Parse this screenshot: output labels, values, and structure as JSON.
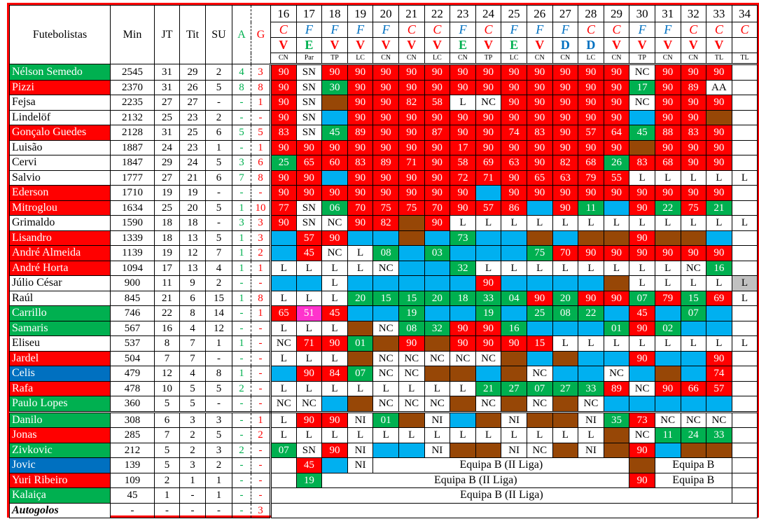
{
  "headers": {
    "name": "Futebolistas",
    "min": "Min",
    "jt": "JT",
    "tit": "Tit",
    "su": "SU",
    "a": "A",
    "g": "G"
  },
  "rounds": [
    "16",
    "17",
    "18",
    "19",
    "20",
    "21",
    "22",
    "23",
    "24",
    "25",
    "26",
    "27",
    "28",
    "29",
    "30",
    "31",
    "32",
    "33",
    "34"
  ],
  "venue": [
    "C",
    "F",
    "F",
    "F",
    "F",
    "C",
    "C",
    "F",
    "C",
    "F",
    "F",
    "F",
    "C",
    "C",
    "F",
    "F",
    "C",
    "C",
    "C"
  ],
  "result": [
    "V",
    "E",
    "V",
    "V",
    "V",
    "V",
    "V",
    "E",
    "V",
    "E",
    "V",
    "D",
    "D",
    "V",
    "V",
    "V",
    "V",
    "V",
    ""
  ],
  "competition": [
    "CN",
    "Par",
    "TP",
    "LC",
    "CN",
    "CN",
    "LC",
    "CN",
    "TP",
    "LC",
    "CN",
    "CN",
    "LC",
    "CN",
    "TP",
    "CN",
    "CN",
    "TL",
    "TL"
  ],
  "colors": {
    "r": "#ff0000",
    "g": "#00b050",
    "b": "#00b0f0",
    "n": "#974706",
    "p": "#ff33cc",
    "x": "#c0c0c0",
    "w": "#ffffff",
    "name_blue": "#0070c0"
  },
  "separator_after": 22,
  "players": [
    {
      "name": "Nélson Semedo",
      "color": "g",
      "min": "2545",
      "jt": "31",
      "tit": "29",
      "su": "2",
      "a": "4",
      "g": "3",
      "fill": "rwrrrrrrrrrrrrwrrrw",
      "cells": [
        "90",
        "SN",
        "90",
        "90",
        "90",
        "90",
        "90",
        "90",
        "90",
        "90",
        "90",
        "90",
        "90",
        "90",
        "NC",
        "90",
        "90",
        "90",
        ""
      ]
    },
    {
      "name": "Pizzi",
      "color": "r",
      "min": "2370",
      "jt": "31",
      "tit": "26",
      "su": "5",
      "a": "8",
      "g": "8",
      "fill": "rwgrrrrrrrrrrrgrrww",
      "cells": [
        "90",
        "SN",
        "30",
        "90",
        "90",
        "90",
        "90",
        "90",
        "90",
        "90",
        "90",
        "90",
        "90",
        "90",
        "17",
        "90",
        "89",
        "AA",
        ""
      ]
    },
    {
      "name": "Fejsa",
      "color": "w",
      "min": "2235",
      "jt": "27",
      "tit": "27",
      "su": "-",
      "a": "-",
      "g": "1",
      "fill": "rwnrrrrwwrrrrrwrrrw",
      "cells": [
        "90",
        "SN",
        "",
        "90",
        "90",
        "82",
        "58",
        "L",
        "NC",
        "90",
        "90",
        "90",
        "90",
        "90",
        "NC",
        "90",
        "90",
        "90",
        ""
      ]
    },
    {
      "name": "Lindelöf",
      "color": "w",
      "min": "2132",
      "jt": "25",
      "tit": "23",
      "su": "2",
      "a": "-",
      "g": "-",
      "fill": "rwbrrrrrrrrrrrbrrnw",
      "cells": [
        "90",
        "SN",
        "",
        "90",
        "90",
        "90",
        "90",
        "90",
        "90",
        "90",
        "90",
        "90",
        "90",
        "90",
        "",
        "90",
        "90",
        "",
        ""
      ]
    },
    {
      "name": "Gonçalo Guedes",
      "color": "r",
      "min": "2128",
      "jt": "31",
      "tit": "25",
      "su": "6",
      "a": "5",
      "g": "5",
      "fill": "rwgrrrrrrrrrrrgrrrw",
      "cells": [
        "83",
        "SN",
        "45",
        "89",
        "90",
        "90",
        "87",
        "90",
        "90",
        "74",
        "83",
        "90",
        "57",
        "64",
        "45",
        "88",
        "83",
        "90",
        ""
      ]
    },
    {
      "name": "Luisão",
      "color": "w",
      "min": "1887",
      "jt": "24",
      "tit": "23",
      "su": "1",
      "a": "-",
      "g": "1",
      "fill": "rrrrrrrrrrrrrrnrrrw",
      "cells": [
        "90",
        "90",
        "90",
        "90",
        "90",
        "90",
        "90",
        "17",
        "90",
        "90",
        "90",
        "90",
        "90",
        "90",
        "",
        "90",
        "90",
        "90",
        ""
      ]
    },
    {
      "name": "Cervi",
      "color": "w",
      "min": "1847",
      "jt": "29",
      "tit": "24",
      "su": "5",
      "a": "3",
      "g": "6",
      "fill": "grrrrrrrrrrrrgrrrrw",
      "cells": [
        "25",
        "65",
        "60",
        "83",
        "89",
        "71",
        "90",
        "58",
        "69",
        "63",
        "90",
        "82",
        "68",
        "26",
        "83",
        "68",
        "90",
        "90",
        ""
      ]
    },
    {
      "name": "Salvio",
      "color": "w",
      "min": "1777",
      "jt": "27",
      "tit": "21",
      "su": "6",
      "a": "7",
      "g": "8",
      "fill": "rrbrrrrrrrrrrrwwwww",
      "cells": [
        "90",
        "90",
        "",
        "90",
        "90",
        "90",
        "90",
        "72",
        "71",
        "90",
        "65",
        "63",
        "79",
        "55",
        "L",
        "L",
        "L",
        "L",
        "L"
      ]
    },
    {
      "name": "Ederson",
      "color": "r",
      "min": "1710",
      "jt": "19",
      "tit": "19",
      "su": "-",
      "a": "-",
      "g": "-",
      "fill": "rrrrrrrrbrrrrrrrrrw",
      "cells": [
        "90",
        "90",
        "90",
        "90",
        "90",
        "90",
        "90",
        "90",
        "",
        "90",
        "90",
        "90",
        "90",
        "90",
        "90",
        "90",
        "90",
        "90",
        ""
      ]
    },
    {
      "name": "Mitroglou",
      "color": "r",
      "min": "1634",
      "jt": "25",
      "tit": "20",
      "su": "5",
      "a": "1",
      "g": "10",
      "fill": "rwgrrrrrrrbrgbrgrgw",
      "cells": [
        "77",
        "SN",
        "06",
        "70",
        "75",
        "75",
        "70",
        "90",
        "57",
        "86",
        "",
        "90",
        "11",
        "",
        "90",
        "22",
        "75",
        "21",
        ""
      ]
    },
    {
      "name": "Grimaldo",
      "color": "w",
      "min": "1590",
      "jt": "18",
      "tit": "18",
      "su": "-",
      "a": "3",
      "g": "3",
      "fill": "rwwrrnrwwwwwwwwwwww",
      "cells": [
        "90",
        "SN",
        "NC",
        "90",
        "82",
        "",
        "90",
        "L",
        "L",
        "L",
        "L",
        "L",
        "L",
        "L",
        "L",
        "L",
        "L",
        "L",
        "L"
      ]
    },
    {
      "name": "Lisandro",
      "color": "r",
      "min": "1339",
      "jt": "18",
      "tit": "13",
      "su": "5",
      "a": "1",
      "g": "3",
      "fill": "brrbbnbgbbnbnnrnnbw",
      "cells": [
        "",
        "57",
        "90",
        "",
        "",
        "",
        "",
        "73",
        "",
        "",
        "",
        "",
        "",
        "",
        "90",
        "",
        "",
        "",
        ""
      ]
    },
    {
      "name": "André Almeida",
      "color": "r",
      "min": "1139",
      "jt": "19",
      "tit": "12",
      "su": "7",
      "a": "1",
      "g": "2",
      "fill": "brwwgbgbbbgrrrrrrrw",
      "cells": [
        "",
        "45",
        "NC",
        "L",
        "08",
        "",
        "03",
        "",
        "",
        "",
        "75",
        "70",
        "90",
        "90",
        "90",
        "90",
        "90",
        "90",
        ""
      ]
    },
    {
      "name": "André Horta",
      "color": "r",
      "min": "1094",
      "jt": "17",
      "tit": "13",
      "su": "4",
      "a": "1",
      "g": "1",
      "fill": "wwwwwbbgwwwwwwwwwgw",
      "cells": [
        "L",
        "L",
        "L",
        "L",
        "NC",
        "",
        "",
        "32",
        "L",
        "L",
        "L",
        "L",
        "L",
        "L",
        "L",
        "L",
        "NC",
        "16",
        ""
      ]
    },
    {
      "name": "Júlio César",
      "color": "w",
      "min": "900",
      "jt": "11",
      "tit": "9",
      "su": "2",
      "a": "-",
      "g": "-",
      "fill": "bbwbbbbbrbbbbnwwwwx",
      "cells": [
        "",
        "",
        "L",
        "",
        "",
        "",
        "",
        "",
        "90",
        "",
        "",
        "",
        "",
        "",
        "L",
        "L",
        "L",
        "L",
        "L"
      ]
    },
    {
      "name": "Raúl",
      "color": "w",
      "min": "845",
      "jt": "21",
      "tit": "6",
      "su": "15",
      "a": "1",
      "g": "8",
      "fill": "wwwgggggggrgrrgrgrw",
      "cells": [
        "L",
        "L",
        "L",
        "20",
        "15",
        "15",
        "20",
        "18",
        "33",
        "04",
        "90",
        "20",
        "90",
        "90",
        "07",
        "79",
        "15",
        "69",
        "L"
      ]
    },
    {
      "name": "Carrillo",
      "color": "g",
      "min": "746",
      "jt": "22",
      "tit": "8",
      "su": "14",
      "a": "-",
      "g": "1",
      "fill": "rprbbgbbgbgggbrbgbw",
      "cells": [
        "65",
        "51",
        "45",
        "",
        "",
        "19",
        "",
        "",
        "19",
        "",
        "25",
        "08",
        "22",
        "",
        "45",
        "",
        "07",
        "",
        ""
      ]
    },
    {
      "name": "Samaris",
      "color": "g",
      "min": "567",
      "jt": "16",
      "tit": "4",
      "su": "12",
      "a": "-",
      "g": "-",
      "fill": "wwwnwggrrgbbbgrgbbw",
      "cells": [
        "L",
        "L",
        "L",
        "",
        "NC",
        "08",
        "32",
        "90",
        "90",
        "16",
        "",
        "",
        "",
        "01",
        "90",
        "02",
        "",
        "",
        ""
      ]
    },
    {
      "name": "Eliseu",
      "color": "w",
      "min": "537",
      "jt": "8",
      "tit": "7",
      "su": "1",
      "a": "1",
      "g": "-",
      "fill": "wrrgnrnrrrrwwwwwwww",
      "cells": [
        "NC",
        "71",
        "90",
        "01",
        "",
        "90",
        "",
        "90",
        "90",
        "90",
        "15",
        "L",
        "L",
        "L",
        "L",
        "L",
        "L",
        "L",
        "L"
      ]
    },
    {
      "name": "Jardel",
      "color": "r",
      "min": "504",
      "jt": "7",
      "tit": "7",
      "su": "-",
      "a": "-",
      "g": "-",
      "fill": "wwwnwwwwwnbnbbrbbrw",
      "cells": [
        "L",
        "L",
        "L",
        "",
        "NC",
        "NC",
        "NC",
        "NC",
        "NC",
        "",
        "",
        "",
        "",
        "",
        "90",
        "",
        "",
        "90",
        ""
      ]
    },
    {
      "name": "Celis",
      "color": "nb",
      "min": "479",
      "jt": "12",
      "tit": "4",
      "su": "8",
      "a": "1",
      "g": "-",
      "fill": "brrgwwnnbnwbbwbnbrw",
      "cells": [
        "",
        "90",
        "84",
        "07",
        "NC",
        "NC",
        "",
        "",
        "",
        "",
        "NC",
        "",
        "",
        "NC",
        "",
        "",
        "",
        "74",
        ""
      ]
    },
    {
      "name": "Rafa",
      "color": "r",
      "min": "478",
      "jt": "10",
      "tit": "5",
      "su": "5",
      "a": "2",
      "g": "-",
      "fill": "wwwwwwwwgggggrwrrrw",
      "cells": [
        "L",
        "L",
        "L",
        "L",
        "L",
        "L",
        "L",
        "L",
        "21",
        "27",
        "07",
        "27",
        "33",
        "89",
        "NC",
        "90",
        "66",
        "57",
        ""
      ]
    },
    {
      "name": "Paulo Lopes",
      "color": "g",
      "min": "360",
      "jt": "5",
      "tit": "5",
      "su": "-",
      "a": "-",
      "g": "-",
      "fill": "wwbnwwwnwnwnwbbbbbw",
      "cells": [
        "NC",
        "NC",
        "",
        "",
        "NC",
        "NC",
        "NC",
        "",
        "NC",
        "",
        "NC",
        "",
        "NC",
        "",
        "",
        "",
        "",
        "",
        ""
      ]
    },
    {
      "name": "Danilo",
      "color": "g",
      "min": "308",
      "jt": "6",
      "tit": "3",
      "su": "3",
      "a": "-",
      "g": "1",
      "fill": "wrrwgnwbnwnnwgrwwww",
      "cells": [
        "L",
        "90",
        "90",
        "NI",
        "01",
        "",
        "NI",
        "",
        "",
        "NI",
        "",
        "",
        "NI",
        "35",
        "73",
        "NC",
        "NC",
        "NC",
        ""
      ]
    },
    {
      "name": "Jonas",
      "color": "r",
      "min": "285",
      "jt": "7",
      "tit": "2",
      "su": "5",
      "a": "-",
      "g": "2",
      "fill": "wwwwwwwwwwwwwnwgggw",
      "cells": [
        "L",
        "L",
        "L",
        "L",
        "L",
        "L",
        "L",
        "L",
        "L",
        "L",
        "L",
        "L",
        "L",
        "",
        "NC",
        "11",
        "24",
        "33",
        ""
      ]
    },
    {
      "name": "Zivkovic",
      "color": "g",
      "min": "212",
      "jt": "5",
      "tit": "2",
      "su": "3",
      "a": "2",
      "g": "-",
      "fill": "gwrwbbwnnwwnwnrbnnw",
      "cells": [
        "07",
        "SN",
        "90",
        "NI",
        "",
        "",
        "NI",
        "",
        "",
        "NI",
        "NC",
        "",
        "NI",
        "",
        "90",
        "",
        "",
        "",
        ""
      ]
    },
    {
      "name": "Jovic",
      "color": "nb",
      "min": "139",
      "jt": "5",
      "tit": "3",
      "su": "2",
      "a": "-",
      "g": "-",
      "fill": "wrbwwnww",
      "cells": [
        "",
        "45",
        "",
        "NI",
        {
          "text": "Equipa B (II Liga)",
          "span": 10
        },
        "",
        {
          "text": "Equipa B",
          "span": 3
        },
        ""
      ]
    },
    {
      "name": "Yuri Ribeiro",
      "color": "r",
      "min": "109",
      "jt": "2",
      "tit": "1",
      "su": "1",
      "a": "-",
      "g": "-",
      "fill": "wgwrww",
      "cells": [
        "",
        "19",
        {
          "text": "Equipa B (II Liga)",
          "span": 12
        },
        "90",
        {
          "text": "Equipa B",
          "span": 3
        },
        ""
      ]
    },
    {
      "name": "Kalaiça",
      "color": "g",
      "min": "45",
      "jt": "1",
      "tit": "-",
      "su": "1",
      "a": "-",
      "g": "-",
      "fill": "ww",
      "cells": [
        {
          "text": "Equipa B (II Liga)",
          "span": 18
        },
        ""
      ]
    },
    {
      "name": "Autogolos",
      "color": "w",
      "bold": true,
      "min": "-",
      "jt": "-",
      "tit": "-",
      "su": "-",
      "a": "-",
      "g": "3",
      "fill": "w",
      "cells": [
        {
          "text": "",
          "span": 19
        }
      ]
    }
  ]
}
